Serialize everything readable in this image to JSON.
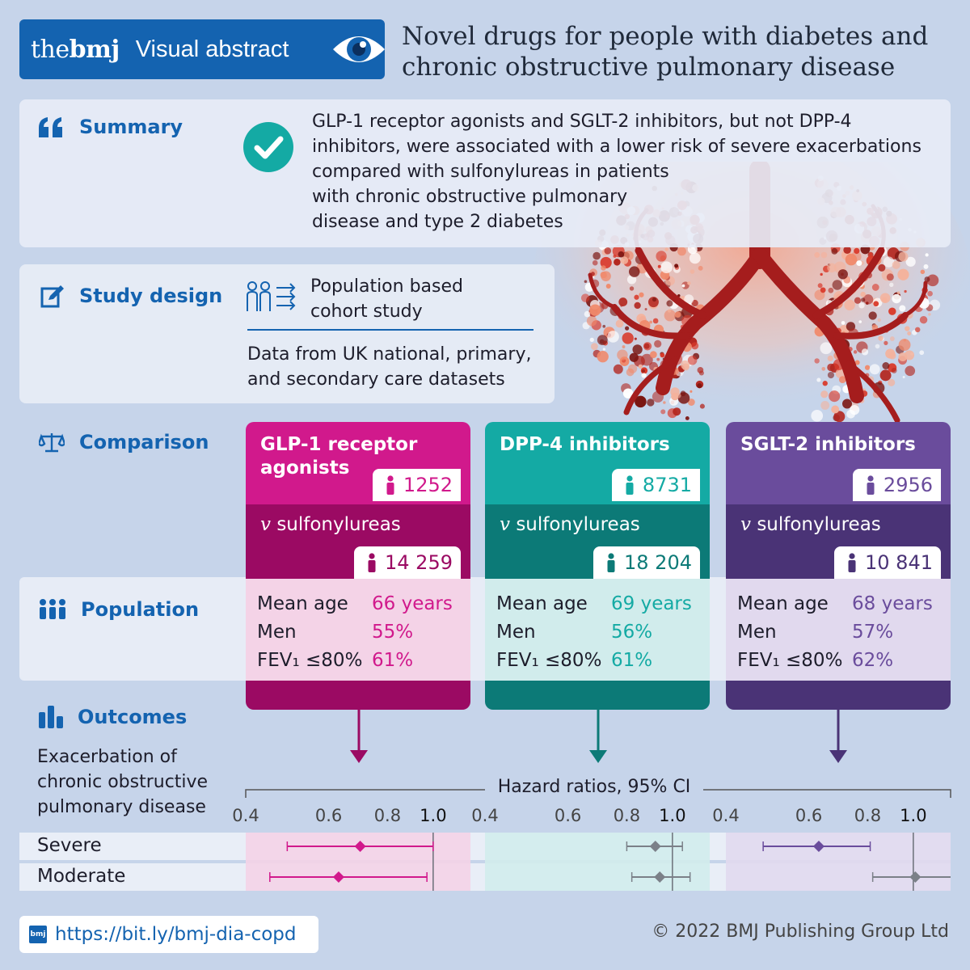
{
  "header": {
    "brand_the": "the",
    "brand_bmj": "bmj",
    "badge_label": "Visual abstract",
    "title_line1": "Novel drugs for people with diabetes and",
    "title_line2": "chronic obstructive pulmonary disease"
  },
  "summary": {
    "label": "Summary",
    "lines": [
      "GLP-1 receptor agonists and SGLT-2 inhibitors, but not DPP-4",
      "inhibitors, were associated with a lower risk of severe exacerbations",
      "compared with sulfonylureas in patients",
      "with chronic obstructive pulmonary",
      "disease and type 2 diabetes"
    ]
  },
  "study_design": {
    "label": "Study design",
    "type_line1": "Population based",
    "type_line2": "cohort study",
    "data_line1": "Data from UK national, primary,",
    "data_line2": "and secondary care datasets"
  },
  "comparison": {
    "label": "Comparison",
    "vs_prefix": "v",
    "vs_label": "sulfonylureas",
    "groups": [
      {
        "name_line1": "GLP-1 receptor",
        "name_line2": "agonists",
        "n": "1252",
        "comparator_n": "14 259",
        "mean_age": "66 years",
        "men": "55%",
        "fev": "61%",
        "color": "#d1198c",
        "dark": "#9b0a63",
        "light": "#f4d3e7"
      },
      {
        "name_line1": "DPP-4 inhibitors",
        "name_line2": "",
        "n": "8731",
        "comparator_n": "18 204",
        "mean_age": "69 years",
        "men": "56%",
        "fev": "61%",
        "color": "#14aaa4",
        "dark": "#0c7a77",
        "light": "#d1ecec"
      },
      {
        "name_line1": "SGLT-2 inhibitors",
        "name_line2": "",
        "n": "2956",
        "comparator_n": "10 841",
        "mean_age": "68 years",
        "men": "57%",
        "fev": "62%",
        "color": "#6a4c9c",
        "dark": "#4a3376",
        "light": "#e1d9ee"
      }
    ]
  },
  "population": {
    "label": "Population",
    "mean_age_label": "Mean age",
    "men_label": "Men",
    "fev_label": "FEV₁ ≤80%"
  },
  "outcomes": {
    "label": "Outcomes",
    "desc_line1": "Exacerbation of",
    "desc_line2": "chronic obstructive",
    "desc_line3": "pulmonary disease",
    "axis_title": "Hazard ratios, 95% CI",
    "tick_labels": [
      "0.4",
      "0.6",
      "0.8",
      "1.0"
    ],
    "row_labels": [
      "Severe",
      "Moderate"
    ]
  },
  "chart_data": {
    "type": "forest",
    "axis_title": "Hazard ratios, 95% CI",
    "x_scale": "log",
    "xlim": [
      0.4,
      1.2
    ],
    "ticks": [
      0.4,
      0.6,
      0.8,
      1.0
    ],
    "rows": [
      "Severe",
      "Moderate"
    ],
    "panels": [
      {
        "group": "GLP-1 receptor agonists",
        "severe": {
          "hr": 0.7,
          "lo": 0.49,
          "hi": 1.0
        },
        "moderate": {
          "hr": 0.63,
          "lo": 0.45,
          "hi": 0.97
        }
      },
      {
        "group": "DPP-4 inhibitors",
        "severe": {
          "hr": 0.92,
          "lo": 0.8,
          "hi": 1.05
        },
        "moderate": {
          "hr": 0.94,
          "lo": 0.82,
          "hi": 1.09
        }
      },
      {
        "group": "SGLT-2 inhibitors",
        "severe": {
          "hr": 0.63,
          "lo": 0.48,
          "hi": 0.81
        },
        "moderate": {
          "hr": 1.01,
          "lo": 0.82,
          "hi": 1.25
        }
      }
    ]
  },
  "footer": {
    "icon_label": "bmj",
    "link": "https://bit.ly/bmj-dia-copd",
    "copyright": "© 2022 BMJ Publishing Group Ltd"
  }
}
